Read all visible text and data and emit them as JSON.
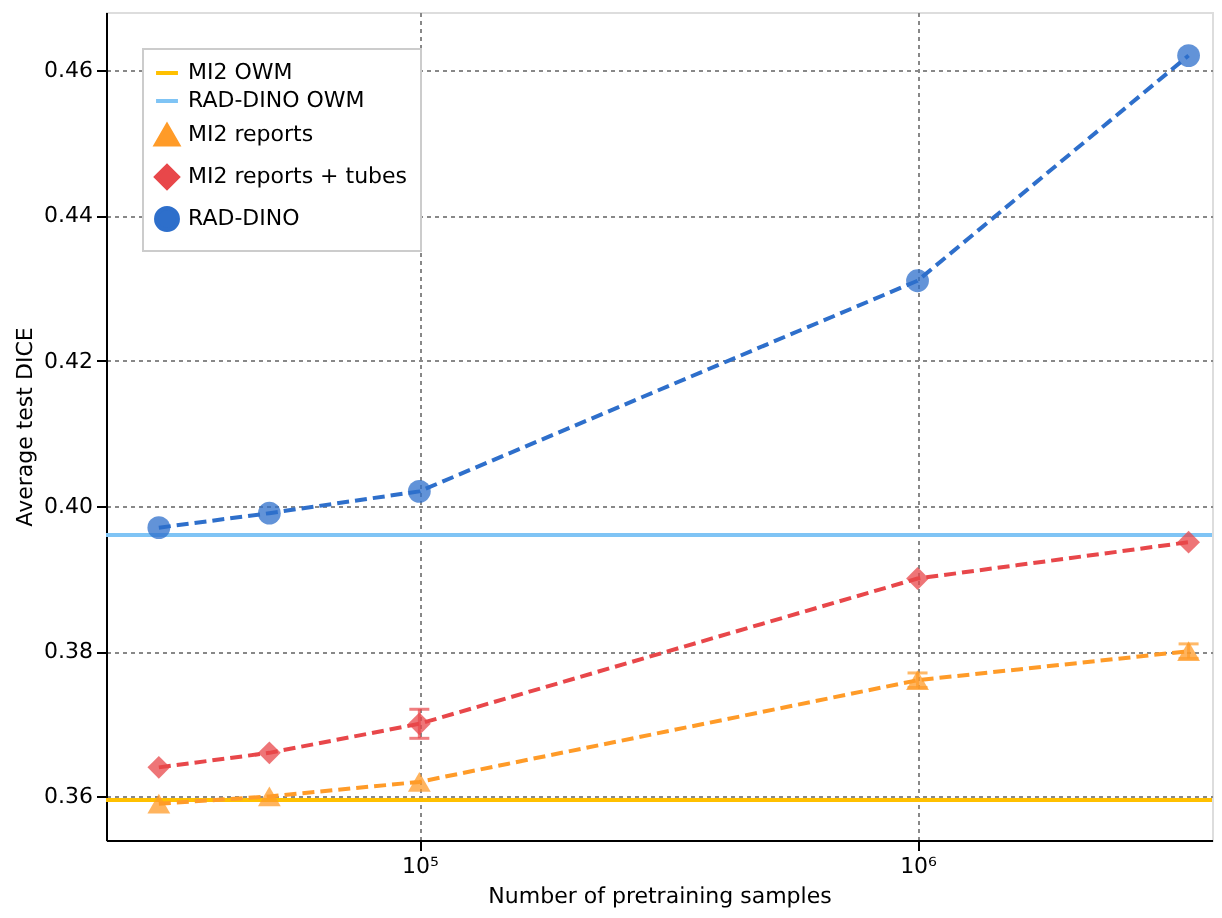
{
  "chart_data": {
    "type": "line",
    "xlabel": "Number of pretraining samples",
    "ylabel": "Average test DICE",
    "log": "x",
    "x": [
      30000,
      50000,
      100000,
      1000000,
      3500000
    ],
    "xlim": [
      23500,
      3900000
    ],
    "xticks": [
      {
        "value": 100000,
        "label": "10⁵"
      },
      {
        "value": 1000000,
        "label": "10⁶"
      }
    ],
    "ylim": [
      0.354,
      0.468
    ],
    "yticks": [
      0.36,
      0.38,
      {
        "value": 0.4,
        "label": "0.40"
      },
      0.42,
      0.44,
      0.46
    ],
    "grid": true,
    "legend": "top left",
    "line_style": "dashed",
    "ref_lines": [
      {
        "axis": "y",
        "value": 0.3595,
        "label": "MI2 OWM",
        "color": "#ffc000"
      },
      {
        "axis": "y",
        "value": 0.396,
        "label": "RAD-DINO OWM",
        "color": "#7fc4f5"
      }
    ],
    "series": [
      {
        "name": "MI2 reports",
        "color": "#ff9b28",
        "marker": "triangle",
        "values": [
          0.359,
          0.36,
          0.362,
          0.376,
          0.38
        ],
        "errors": [
          null,
          null,
          null,
          0.001,
          0.001
        ]
      },
      {
        "name": "MI2 reports + tubes",
        "color": "#e8474a",
        "marker": "diamond",
        "values": [
          0.364,
          0.366,
          0.37,
          0.39,
          0.395
        ],
        "errors": [
          null,
          null,
          0.002,
          null,
          null
        ]
      },
      {
        "name": "RAD-DINO",
        "color": "#2e6fcb",
        "marker": "circle",
        "values": [
          0.397,
          0.399,
          0.402,
          0.431,
          0.462
        ],
        "errors": [
          null,
          null,
          null,
          null,
          null
        ]
      }
    ]
  }
}
